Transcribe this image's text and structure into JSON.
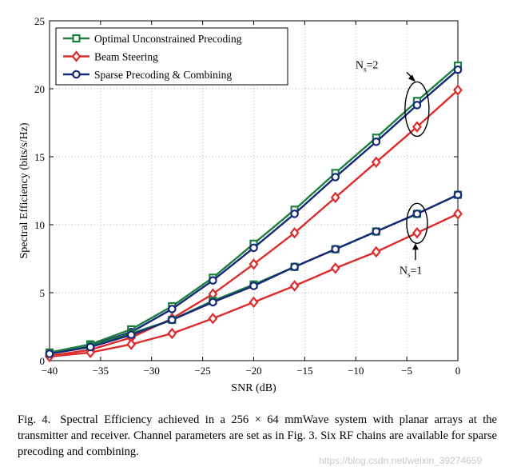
{
  "chart_data": {
    "type": "line",
    "xlabel": "SNR (dB)",
    "ylabel": "Spectral Efficiency (bits/s/Hz)",
    "xlim": [
      -40,
      0
    ],
    "ylim": [
      0,
      25
    ],
    "xticks": [
      -40,
      -35,
      -30,
      -25,
      -20,
      -15,
      -10,
      -5,
      0
    ],
    "xtick_labels": [
      "−40",
      "−35",
      "−30",
      "−25",
      "−20",
      "−15",
      "−10",
      "−5",
      "0"
    ],
    "yticks": [
      0,
      5,
      10,
      15,
      20,
      25
    ],
    "ytick_labels": [
      "0",
      "5",
      "10",
      "15",
      "20",
      "25"
    ],
    "grid": true,
    "legend_position": "top-left",
    "x": [
      -40,
      -36,
      -32,
      -28,
      -24,
      -20,
      -16,
      -12,
      -8,
      -4,
      0
    ],
    "series": [
      {
        "name": "Optimal Unconstrained Precoding",
        "group": "Ns=2",
        "color": "#1e8040",
        "marker": "square",
        "values": [
          0.6,
          1.2,
          2.3,
          4.0,
          6.1,
          8.6,
          11.1,
          13.8,
          16.4,
          19.1,
          21.7
        ]
      },
      {
        "name": "Beam Steering",
        "group": "Ns=2",
        "color": "#dd2c2c",
        "marker": "diamond",
        "values": [
          0.35,
          0.8,
          1.7,
          3.1,
          4.9,
          7.1,
          9.4,
          12.0,
          14.6,
          17.2,
          19.9
        ]
      },
      {
        "name": "Sparse Precoding & Combining",
        "group": "Ns=2",
        "color": "#152a78",
        "marker": "circle",
        "values": [
          0.55,
          1.1,
          2.1,
          3.8,
          5.9,
          8.3,
          10.8,
          13.5,
          16.1,
          18.8,
          21.4
        ]
      },
      {
        "name": "Optimal Unconstrained Precoding",
        "group": "Ns=1",
        "color": "#1e8040",
        "marker": "square",
        "values": [
          0.55,
          1.1,
          2.0,
          3.0,
          4.4,
          5.6,
          6.9,
          8.2,
          9.5,
          10.8,
          12.2
        ]
      },
      {
        "name": "Beam Steering",
        "group": "Ns=1",
        "color": "#dd2c2c",
        "marker": "diamond",
        "values": [
          0.3,
          0.6,
          1.2,
          2.0,
          3.1,
          4.3,
          5.5,
          6.8,
          8.0,
          9.4,
          10.8
        ]
      },
      {
        "name": "Sparse Precoding & Combining",
        "group": "Ns=1",
        "color": "#152a78",
        "marker": "circle",
        "values": [
          0.5,
          1.0,
          1.9,
          3.0,
          4.3,
          5.5,
          6.9,
          8.2,
          9.5,
          10.8,
          12.2
        ]
      }
    ],
    "legend": [
      {
        "label": "Optimal Unconstrained Precoding",
        "color": "#1e8040",
        "marker": "square"
      },
      {
        "label": "Beam Steering",
        "color": "#dd2c2c",
        "marker": "diamond"
      },
      {
        "label": "Sparse Precoding & Combining",
        "color": "#152a78",
        "marker": "circle"
      }
    ],
    "annotations": [
      {
        "base": "N",
        "sub": "s",
        "rest": "=2",
        "target_x": -4,
        "target_y": 18.8
      },
      {
        "base": "N",
        "sub": "s",
        "rest": "=1",
        "target_x": -4,
        "target_y": 10.1
      }
    ]
  },
  "caption": {
    "number": "Fig. 4.",
    "text": "Spectral Efficiency achieved in a 256 × 64 mmWave system with planar arrays at the transmitter and receiver. Channel parameters are set as in Fig. 3. Six RF chains are available for sparse precoding and combining."
  },
  "watermark": "https://blog.csdn.net/weixin_39274659"
}
